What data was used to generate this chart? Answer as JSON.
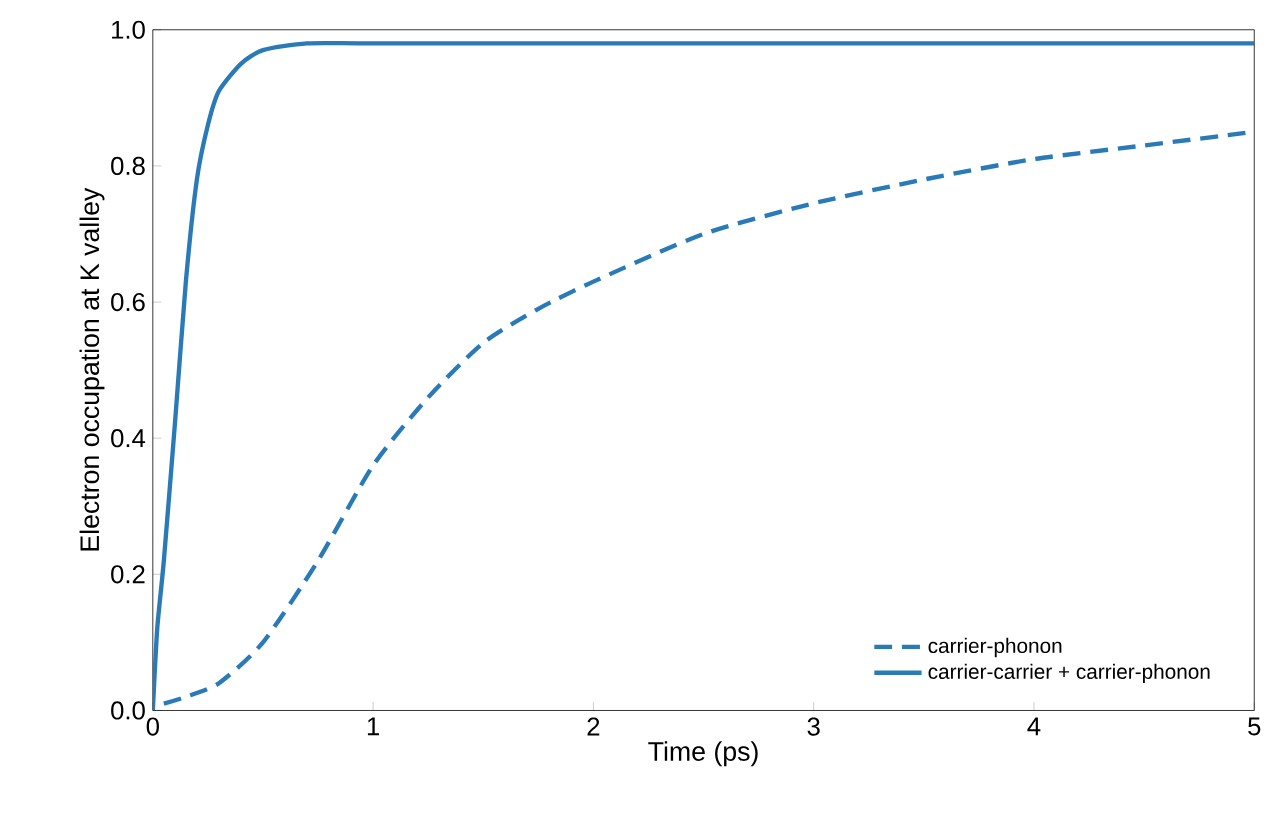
{
  "chart_data": {
    "type": "line",
    "xlabel": "Time (ps)",
    "ylabel": "Electron occupation at K valley",
    "xlim": [
      0,
      5
    ],
    "ylim": [
      0,
      1.0
    ],
    "xticks": [
      0,
      1,
      2,
      3,
      4,
      5
    ],
    "yticks": [
      {
        "value": 0,
        "label": "0.0"
      },
      {
        "value": 0.2,
        "label": "0.2"
      },
      {
        "value": 0.4,
        "label": "0.4"
      },
      {
        "value": 0.6,
        "label": "0.6"
      },
      {
        "value": 0.8,
        "label": "0.8"
      },
      {
        "value": 1.0,
        "label": "1.0"
      }
    ],
    "grid": false,
    "legend": "bottom right",
    "marker": "none",
    "series": [
      {
        "name": "carrier-phonon",
        "color": "#2a7ab8",
        "line_style": "dashed",
        "x": [
          0.05,
          0.15,
          0.3,
          0.5,
          0.75,
          1.0,
          1.25,
          1.5,
          1.75,
          2.0,
          2.5,
          3.0,
          3.5,
          4.0,
          4.5,
          5.0
        ],
        "values": [
          0.01,
          0.02,
          0.04,
          0.1,
          0.22,
          0.36,
          0.46,
          0.54,
          0.59,
          0.63,
          0.7,
          0.745,
          0.78,
          0.81,
          0.83,
          0.85
        ]
      },
      {
        "name": "carrier-carrier + carrier-phonon",
        "color": "#2a7ab8",
        "line_style": "solid",
        "x": [
          0,
          0.02,
          0.05,
          0.1,
          0.15,
          0.2,
          0.25,
          0.3,
          0.4,
          0.5,
          0.7,
          1.0,
          2.0,
          3.0,
          4.0,
          5.0
        ],
        "values": [
          0,
          0.12,
          0.22,
          0.42,
          0.63,
          0.78,
          0.86,
          0.91,
          0.95,
          0.97,
          0.98,
          0.98,
          0.98,
          0.98,
          0.98,
          0.98
        ]
      }
    ]
  }
}
